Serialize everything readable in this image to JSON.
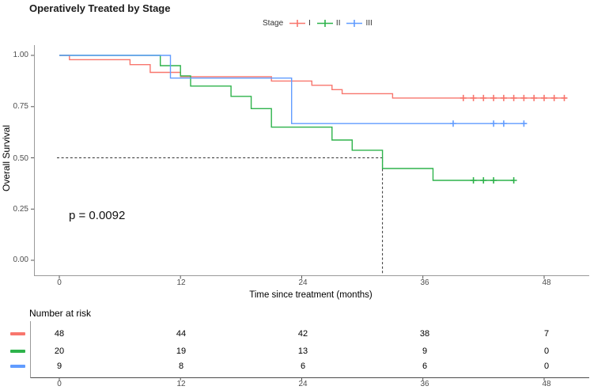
{
  "title": "Operatively Treated by Stage",
  "pvalue": "p = 0.0092",
  "legend": {
    "label": "Stage",
    "items": [
      {
        "label": "I",
        "color": "#f8766d"
      },
      {
        "label": "II",
        "color": "#2eb34b"
      },
      {
        "label": "III",
        "color": "#619cff"
      }
    ]
  },
  "axes": {
    "y": {
      "title": "Overall Survival",
      "ticks": [
        "1.00",
        "0.75",
        "0.50",
        "0.25",
        "0.00"
      ]
    },
    "x": {
      "title": "Time since treatment (months)",
      "ticks": [
        "0",
        "12",
        "24",
        "36",
        "48"
      ]
    }
  },
  "chart_data": {
    "type": "line",
    "variant": "kaplan_meier_step",
    "title": "Operatively Treated by Stage",
    "xlabel": "Time since treatment (months)",
    "ylabel": "Overall Survival",
    "xlim": [
      0,
      52
    ],
    "ylim": [
      0,
      1
    ],
    "xticks": [
      0,
      12,
      24,
      36,
      48
    ],
    "yticks": [
      0,
      0.25,
      0.5,
      0.75,
      1
    ],
    "grid": false,
    "legend_position": "top",
    "pvalue_annotation": "p = 0.0092",
    "median_guide": {
      "x": 32,
      "y": 0.5
    },
    "series": [
      {
        "name": "I",
        "color": "#f8766d",
        "steps": [
          [
            0,
            1.0
          ],
          [
            1,
            0.979
          ],
          [
            7,
            0.955
          ],
          [
            9,
            0.917
          ],
          [
            12,
            0.896
          ],
          [
            21,
            0.875
          ],
          [
            25,
            0.854
          ],
          [
            27,
            0.833
          ],
          [
            28,
            0.813
          ],
          [
            33,
            0.792
          ]
        ],
        "end": 50.2,
        "censors": [
          [
            40,
            0.792
          ],
          [
            41,
            0.792
          ],
          [
            42,
            0.792
          ],
          [
            43,
            0.792
          ],
          [
            44,
            0.792
          ],
          [
            45,
            0.792
          ],
          [
            46,
            0.792
          ],
          [
            47,
            0.792
          ],
          [
            48,
            0.792
          ],
          [
            49,
            0.792
          ],
          [
            50,
            0.792
          ]
        ]
      },
      {
        "name": "II",
        "color": "#2eb34b",
        "steps": [
          [
            0,
            1.0
          ],
          [
            10,
            0.95
          ],
          [
            12,
            0.9
          ],
          [
            13,
            0.85
          ],
          [
            17,
            0.8
          ],
          [
            19,
            0.74
          ],
          [
            21,
            0.65
          ],
          [
            27,
            0.587
          ],
          [
            29,
            0.537
          ],
          [
            32,
            0.448
          ],
          [
            37,
            0.39
          ]
        ],
        "end": 45,
        "censors": [
          [
            41,
            0.39
          ],
          [
            42,
            0.39
          ],
          [
            43,
            0.39
          ],
          [
            45,
            0.39
          ]
        ]
      },
      {
        "name": "III",
        "color": "#619cff",
        "steps": [
          [
            0,
            1.0
          ],
          [
            11,
            0.889
          ],
          [
            23,
            0.667
          ]
        ],
        "end": 46,
        "censors": [
          [
            39,
            0.667
          ],
          [
            43,
            0.667
          ],
          [
            44,
            0.667
          ],
          [
            46,
            0.667
          ]
        ]
      }
    ]
  },
  "risk_table": {
    "title": "Number at risk",
    "columns": [
      "0",
      "12",
      "24",
      "36",
      "48"
    ],
    "rows": [
      {
        "stage": "I",
        "color": "#f8766d",
        "counts": [
          "48",
          "44",
          "42",
          "38",
          "7"
        ]
      },
      {
        "stage": "II",
        "color": "#2eb34b",
        "counts": [
          "20",
          "19",
          "13",
          "9",
          "0"
        ]
      },
      {
        "stage": "III",
        "color": "#619cff",
        "counts": [
          "9",
          "8",
          "6",
          "6",
          "0"
        ]
      }
    ]
  }
}
